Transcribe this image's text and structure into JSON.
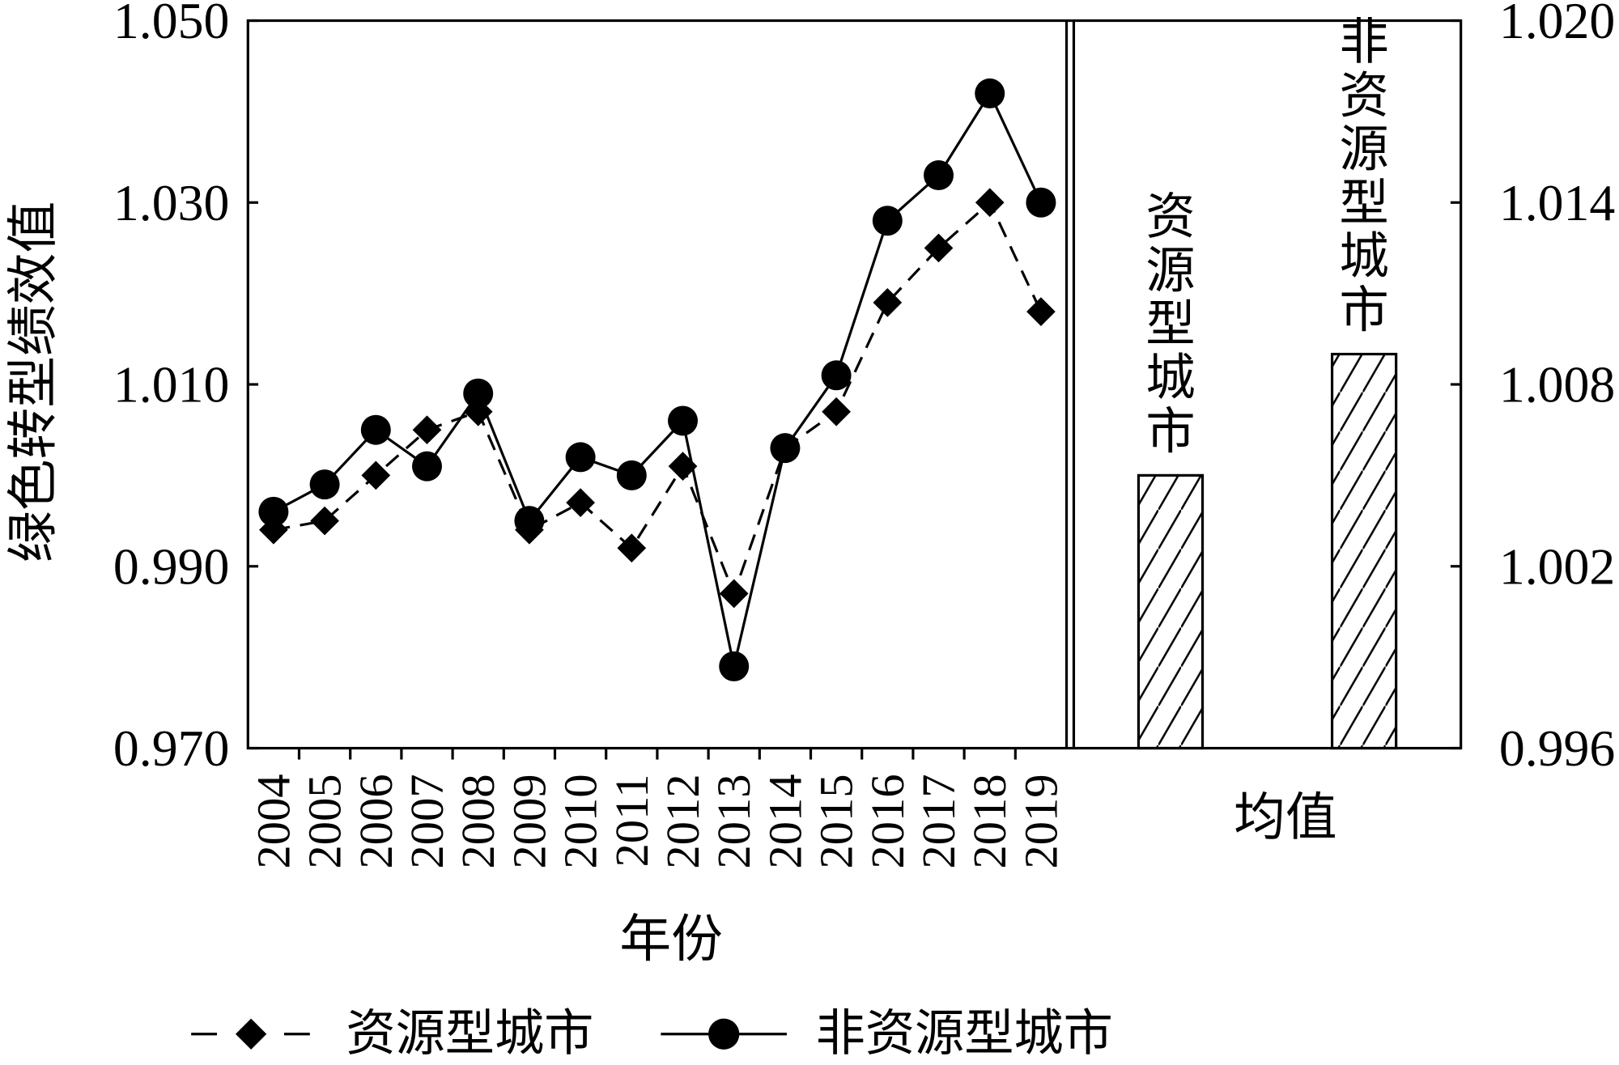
{
  "colors": {
    "ink": "#000000",
    "background": "#ffffff"
  },
  "chart_data": [
    {
      "type": "line",
      "xlabel": "年份",
      "ylabel": "绿色转型绩效值",
      "categories": [
        "2004",
        "2005",
        "2006",
        "2007",
        "2008",
        "2009",
        "2010",
        "2011",
        "2012",
        "2013",
        "2014",
        "2015",
        "2016",
        "2017",
        "2018",
        "2019"
      ],
      "ylim": [
        0.97,
        1.05
      ],
      "yticks": [
        "1.050",
        "1.030",
        "1.010",
        "0.990",
        "0.970"
      ],
      "axis": "left",
      "grid": false,
      "legend": "bottom",
      "series": [
        {
          "name": "资源型城市",
          "marker": "diamond",
          "line": "dashed",
          "values": [
            0.994,
            0.995,
            1.0,
            1.005,
            1.007,
            0.994,
            0.997,
            0.992,
            1.001,
            0.987,
            1.003,
            1.007,
            1.019,
            1.025,
            1.03,
            1.018
          ]
        },
        {
          "name": "非资源型城市",
          "marker": "circle",
          "line": "solid",
          "values": [
            0.996,
            0.999,
            1.005,
            1.001,
            1.009,
            0.995,
            1.002,
            1.0,
            1.006,
            0.979,
            1.003,
            1.011,
            1.028,
            1.033,
            1.042,
            1.03
          ]
        }
      ]
    },
    {
      "type": "bar",
      "xlabel": "均值",
      "categories": [
        "资源型城市",
        "非资源型城市"
      ],
      "values": [
        1.005,
        1.009
      ],
      "ylim": [
        0.996,
        1.02
      ],
      "yticks": [
        "1.020",
        "1.014",
        "1.008",
        "1.002",
        "0.996"
      ],
      "axis": "right",
      "fill": "hatched",
      "grid": false
    }
  ]
}
